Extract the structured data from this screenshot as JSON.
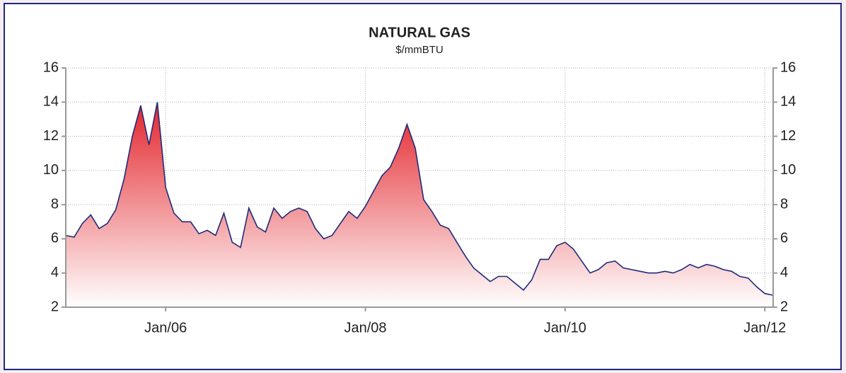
{
  "chart_data": {
    "type": "area",
    "title": "NATURAL GAS",
    "subtitle": "$/mmBTU",
    "x": [
      "2005-01",
      "2005-02",
      "2005-03",
      "2005-04",
      "2005-05",
      "2005-06",
      "2005-07",
      "2005-08",
      "2005-09",
      "2005-10",
      "2005-11",
      "2005-12",
      "2006-01",
      "2006-02",
      "2006-03",
      "2006-04",
      "2006-05",
      "2006-06",
      "2006-07",
      "2006-08",
      "2006-09",
      "2006-10",
      "2006-11",
      "2006-12",
      "2007-01",
      "2007-02",
      "2007-03",
      "2007-04",
      "2007-05",
      "2007-06",
      "2007-07",
      "2007-08",
      "2007-09",
      "2007-10",
      "2007-11",
      "2007-12",
      "2008-01",
      "2008-02",
      "2008-03",
      "2008-04",
      "2008-05",
      "2008-06",
      "2008-07",
      "2008-08",
      "2008-09",
      "2008-10",
      "2008-11",
      "2008-12",
      "2009-01",
      "2009-02",
      "2009-03",
      "2009-04",
      "2009-05",
      "2009-06",
      "2009-07",
      "2009-08",
      "2009-09",
      "2009-10",
      "2009-11",
      "2009-12",
      "2010-01",
      "2010-02",
      "2010-03",
      "2010-04",
      "2010-05",
      "2010-06",
      "2010-07",
      "2010-08",
      "2010-09",
      "2010-10",
      "2010-11",
      "2010-12",
      "2011-01",
      "2011-02",
      "2011-03",
      "2011-04",
      "2011-05",
      "2011-06",
      "2011-07",
      "2011-08",
      "2011-09",
      "2011-10",
      "2011-11",
      "2011-12",
      "2012-01",
      "2012-02"
    ],
    "series": [
      {
        "name": "Natural Gas",
        "color": "#1f2a7a",
        "fill": "#e3242b",
        "values": [
          6.2,
          6.1,
          6.9,
          7.4,
          6.6,
          6.9,
          7.7,
          9.5,
          12.0,
          13.8,
          11.5,
          14.0,
          9.0,
          7.5,
          7.0,
          7.0,
          6.3,
          6.5,
          6.2,
          7.5,
          5.8,
          5.5,
          7.8,
          6.7,
          6.4,
          7.8,
          7.2,
          7.6,
          7.8,
          7.6,
          6.6,
          6.0,
          6.2,
          6.9,
          7.6,
          7.2,
          7.9,
          8.8,
          9.7,
          10.2,
          11.3,
          12.7,
          11.3,
          8.3,
          7.6,
          6.8,
          6.6,
          5.8,
          5.0,
          4.3,
          3.9,
          3.5,
          3.8,
          3.8,
          3.4,
          3.0,
          3.6,
          4.8,
          4.8,
          5.6,
          5.8,
          5.4,
          4.7,
          4.0,
          4.2,
          4.6,
          4.7,
          4.3,
          4.2,
          4.1,
          4.0,
          4.0,
          4.1,
          4.0,
          4.2,
          4.5,
          4.3,
          4.5,
          4.4,
          4.2,
          4.1,
          3.8,
          3.7,
          3.2,
          2.8,
          2.7
        ]
      }
    ],
    "xlim": [
      "2005-01",
      "2012-02"
    ],
    "xticks": [
      {
        "value": "2006-01",
        "label": "Jan/06"
      },
      {
        "value": "2008-01",
        "label": "Jan/08"
      },
      {
        "value": "2010-01",
        "label": "Jan/10"
      },
      {
        "value": "2012-01",
        "label": "Jan/12"
      }
    ],
    "ylim": [
      2,
      16
    ],
    "yticks": [
      2,
      4,
      6,
      8,
      10,
      12,
      14,
      16
    ],
    "grid": true
  }
}
